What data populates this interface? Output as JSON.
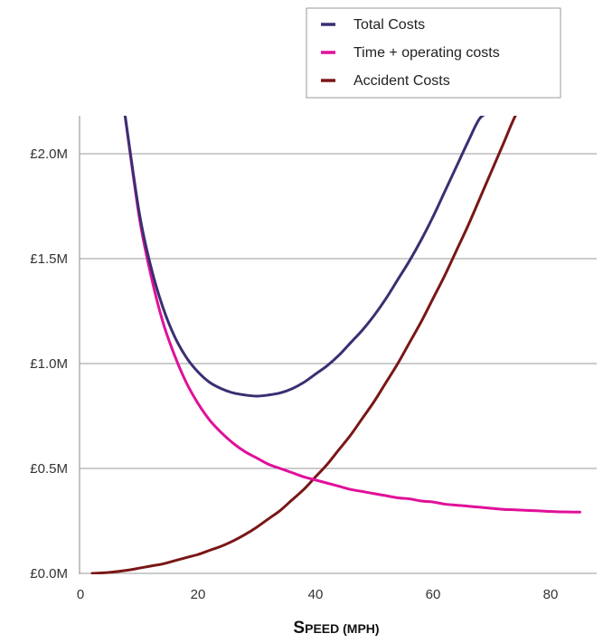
{
  "chart_data": {
    "type": "line",
    "title": "",
    "xlabel": "Speed (mph)",
    "ylabel": "",
    "xlim": [
      0,
      85
    ],
    "ylim": [
      0,
      2.2
    ],
    "x_ticks": [
      0,
      20,
      40,
      60,
      80
    ],
    "x_tick_labels": [
      "0",
      "20",
      "40",
      "60",
      "80"
    ],
    "y_ticks": [
      0,
      0.5,
      1.0,
      1.5,
      2.0
    ],
    "y_tick_labels": [
      "£0.0M",
      "£0.5M",
      "£1.0M",
      "£1.5M",
      "£2.0M"
    ],
    "grid": "horizontal",
    "legend_position": "top-right",
    "series": [
      {
        "name": "Total Costs",
        "color": "#3a2f72",
        "x": [
          7.5,
          10,
          12,
          14,
          16,
          18,
          20,
          22,
          24,
          26,
          28,
          30,
          32,
          34,
          36,
          38,
          40,
          42,
          44,
          46,
          48,
          50,
          52,
          54,
          56,
          58,
          60,
          62,
          64,
          66,
          68,
          70
        ],
        "y": [
          2.2,
          1.72,
          1.46,
          1.27,
          1.13,
          1.03,
          0.96,
          0.91,
          0.88,
          0.86,
          0.85,
          0.845,
          0.85,
          0.86,
          0.88,
          0.91,
          0.95,
          0.99,
          1.04,
          1.1,
          1.16,
          1.23,
          1.31,
          1.4,
          1.49,
          1.59,
          1.7,
          1.82,
          1.94,
          2.06,
          2.17,
          2.2
        ]
      },
      {
        "name": "Time + operating costs",
        "color": "#e0109a",
        "x": [
          7.5,
          10,
          12,
          14,
          16,
          18,
          20,
          22,
          24,
          26,
          28,
          30,
          32,
          34,
          36,
          38,
          40,
          42,
          44,
          46,
          48,
          50,
          52,
          54,
          56,
          58,
          60,
          62,
          64,
          66,
          68,
          70,
          72,
          74,
          76,
          78,
          80,
          82,
          85
        ],
        "y": [
          2.2,
          1.7,
          1.42,
          1.2,
          1.04,
          0.91,
          0.81,
          0.73,
          0.67,
          0.62,
          0.58,
          0.55,
          0.52,
          0.5,
          0.48,
          0.46,
          0.445,
          0.43,
          0.415,
          0.4,
          0.39,
          0.38,
          0.37,
          0.36,
          0.355,
          0.345,
          0.34,
          0.33,
          0.325,
          0.32,
          0.315,
          0.31,
          0.305,
          0.303,
          0.3,
          0.298,
          0.295,
          0.293,
          0.292
        ]
      },
      {
        "name": "Accident Costs",
        "color": "#7a1616",
        "x": [
          2,
          5,
          8,
          10,
          12,
          14,
          16,
          18,
          20,
          22,
          24,
          26,
          28,
          30,
          32,
          34,
          36,
          38,
          40,
          42,
          44,
          46,
          48,
          50,
          52,
          54,
          56,
          58,
          60,
          62,
          64,
          66,
          68,
          70,
          72,
          74,
          75
        ],
        "y": [
          0.0,
          0.005,
          0.015,
          0.025,
          0.035,
          0.045,
          0.06,
          0.075,
          0.09,
          0.11,
          0.13,
          0.155,
          0.185,
          0.22,
          0.26,
          0.3,
          0.35,
          0.4,
          0.46,
          0.52,
          0.59,
          0.66,
          0.74,
          0.82,
          0.91,
          1.0,
          1.1,
          1.2,
          1.31,
          1.42,
          1.54,
          1.66,
          1.79,
          1.92,
          2.05,
          2.18,
          2.2
        ]
      }
    ]
  }
}
